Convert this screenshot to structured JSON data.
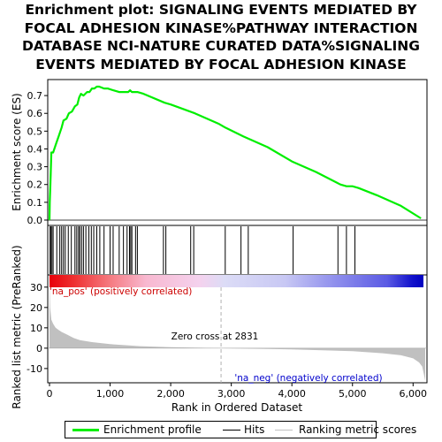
{
  "title_lines": [
    "Enrichment plot: SIGNALING EVENTS MEDIATED BY",
    "FOCAL ADHESION KINASE%PATHWAY INTERACTION",
    "DATABASE NCI-NATURE CURATED DATA%SIGNALING",
    "EVENTS MEDIATED BY FOCAL ADHESION KINASE"
  ],
  "colors": {
    "enrichment_line": "#00ee00",
    "hits": "#000000",
    "ranking_fill": "#c0c0c0",
    "pos_label": "#cc0000",
    "neg_label": "#0000cc",
    "zero_cross_line": "#b0b0b0"
  },
  "legend": {
    "enrichment_label": "Enrichment profile",
    "hits_label": "Hits",
    "ranking_label": "Ranking metric scores"
  },
  "chart_data": {
    "type": "line",
    "xlabel": "Rank in Ordered Dataset",
    "x_ticks": [
      0,
      1000,
      2000,
      3000,
      4000,
      5000,
      6000
    ],
    "x_tick_labels": [
      "0",
      "1,000",
      "2,000",
      "3,000",
      "4,000",
      "5,000",
      "6,000"
    ],
    "xlim": [
      0,
      6200
    ],
    "enrichment": {
      "ylabel": "Enrichment score (ES)",
      "ylim": [
        -0.03,
        0.79
      ],
      "y_ticks": [
        0.0,
        0.1,
        0.2,
        0.3,
        0.4,
        0.5,
        0.6,
        0.7
      ],
      "y_tick_labels": [
        "0.0",
        "0.1",
        "0.2",
        "0.3",
        "0.4",
        "0.5",
        "0.6",
        "0.7"
      ],
      "series": [
        {
          "x": [
            0,
            5,
            15,
            30,
            60,
            110,
            150,
            200,
            230,
            280,
            320,
            370,
            420,
            460,
            490,
            520,
            560,
            620,
            660,
            700,
            740,
            780,
            820,
            900,
            960,
            1050,
            1150,
            1250,
            1300,
            1330,
            1360,
            1420,
            1450,
            1550,
            1900,
            2000,
            2400,
            2800,
            2900,
            3200,
            3600,
            4000,
            4400,
            4800,
            4900,
            5000,
            5100,
            5400,
            5800,
            6130
          ],
          "y": [
            0.0,
            0.1,
            0.2,
            0.38,
            0.38,
            0.43,
            0.47,
            0.52,
            0.56,
            0.57,
            0.6,
            0.61,
            0.64,
            0.65,
            0.69,
            0.71,
            0.7,
            0.72,
            0.72,
            0.74,
            0.74,
            0.75,
            0.75,
            0.74,
            0.74,
            0.73,
            0.72,
            0.72,
            0.72,
            0.73,
            0.72,
            0.72,
            0.72,
            0.71,
            0.66,
            0.65,
            0.6,
            0.54,
            0.52,
            0.47,
            0.41,
            0.33,
            0.27,
            0.2,
            0.19,
            0.19,
            0.18,
            0.14,
            0.08,
            0.01
          ]
        }
      ]
    },
    "hits": [
      10,
      20,
      40,
      60,
      120,
      170,
      200,
      230,
      260,
      310,
      360,
      420,
      450,
      480,
      500,
      530,
      560,
      600,
      650,
      690,
      730,
      780,
      830,
      900,
      1000,
      1050,
      1150,
      1220,
      1280,
      1320,
      1340,
      1360,
      1420,
      1450,
      1880,
      1920,
      2330,
      2380,
      2900,
      3160,
      3280,
      4020,
      4760,
      4900,
      5040
    ],
    "ranking": {
      "ylabel": "Ranked list metric (PreRanked)",
      "ylim": [
        -17,
        36
      ],
      "y_ticks": [
        -10,
        0,
        10,
        20,
        30
      ],
      "y_tick_labels": [
        "-10",
        "0",
        "10",
        "20",
        "30"
      ],
      "x": [
        0,
        10,
        30,
        60,
        100,
        150,
        200,
        300,
        400,
        500,
        700,
        1000,
        1500,
        2000,
        2500,
        2831,
        3500,
        4000,
        4500,
        5000,
        5500,
        5800,
        6000,
        6100,
        6150,
        6180,
        6200
      ],
      "values": [
        34,
        20,
        14,
        12,
        10,
        9,
        8,
        6.5,
        5,
        4,
        3,
        2,
        1,
        0.5,
        0.2,
        0,
        -0.3,
        -0.6,
        -1,
        -1.5,
        -2.5,
        -3.5,
        -5,
        -7,
        -9,
        -13,
        -16
      ]
    },
    "zero_cross": 2831,
    "annotations": {
      "zero_cross_label": "Zero cross at 2831",
      "pos_label": "'na_pos' (positively correlated)",
      "neg_label": "'na_neg' (negatively correlated)"
    },
    "heatmap_stops": [
      {
        "x": 0,
        "color": "#e8000a"
      },
      {
        "x": 400,
        "color": "#ee3030"
      },
      {
        "x": 1000,
        "color": "#f57a80"
      },
      {
        "x": 1600,
        "color": "#f8b8d0"
      },
      {
        "x": 2500,
        "color": "#f4d2ee"
      },
      {
        "x": 2900,
        "color": "#dcdcf6"
      },
      {
        "x": 3900,
        "color": "#c8c8f4"
      },
      {
        "x": 4600,
        "color": "#9898ee"
      },
      {
        "x": 5600,
        "color": "#5a5ae4"
      },
      {
        "x": 6000,
        "color": "#1414cc"
      },
      {
        "x": 6200,
        "color": "#0000c0"
      }
    ]
  }
}
